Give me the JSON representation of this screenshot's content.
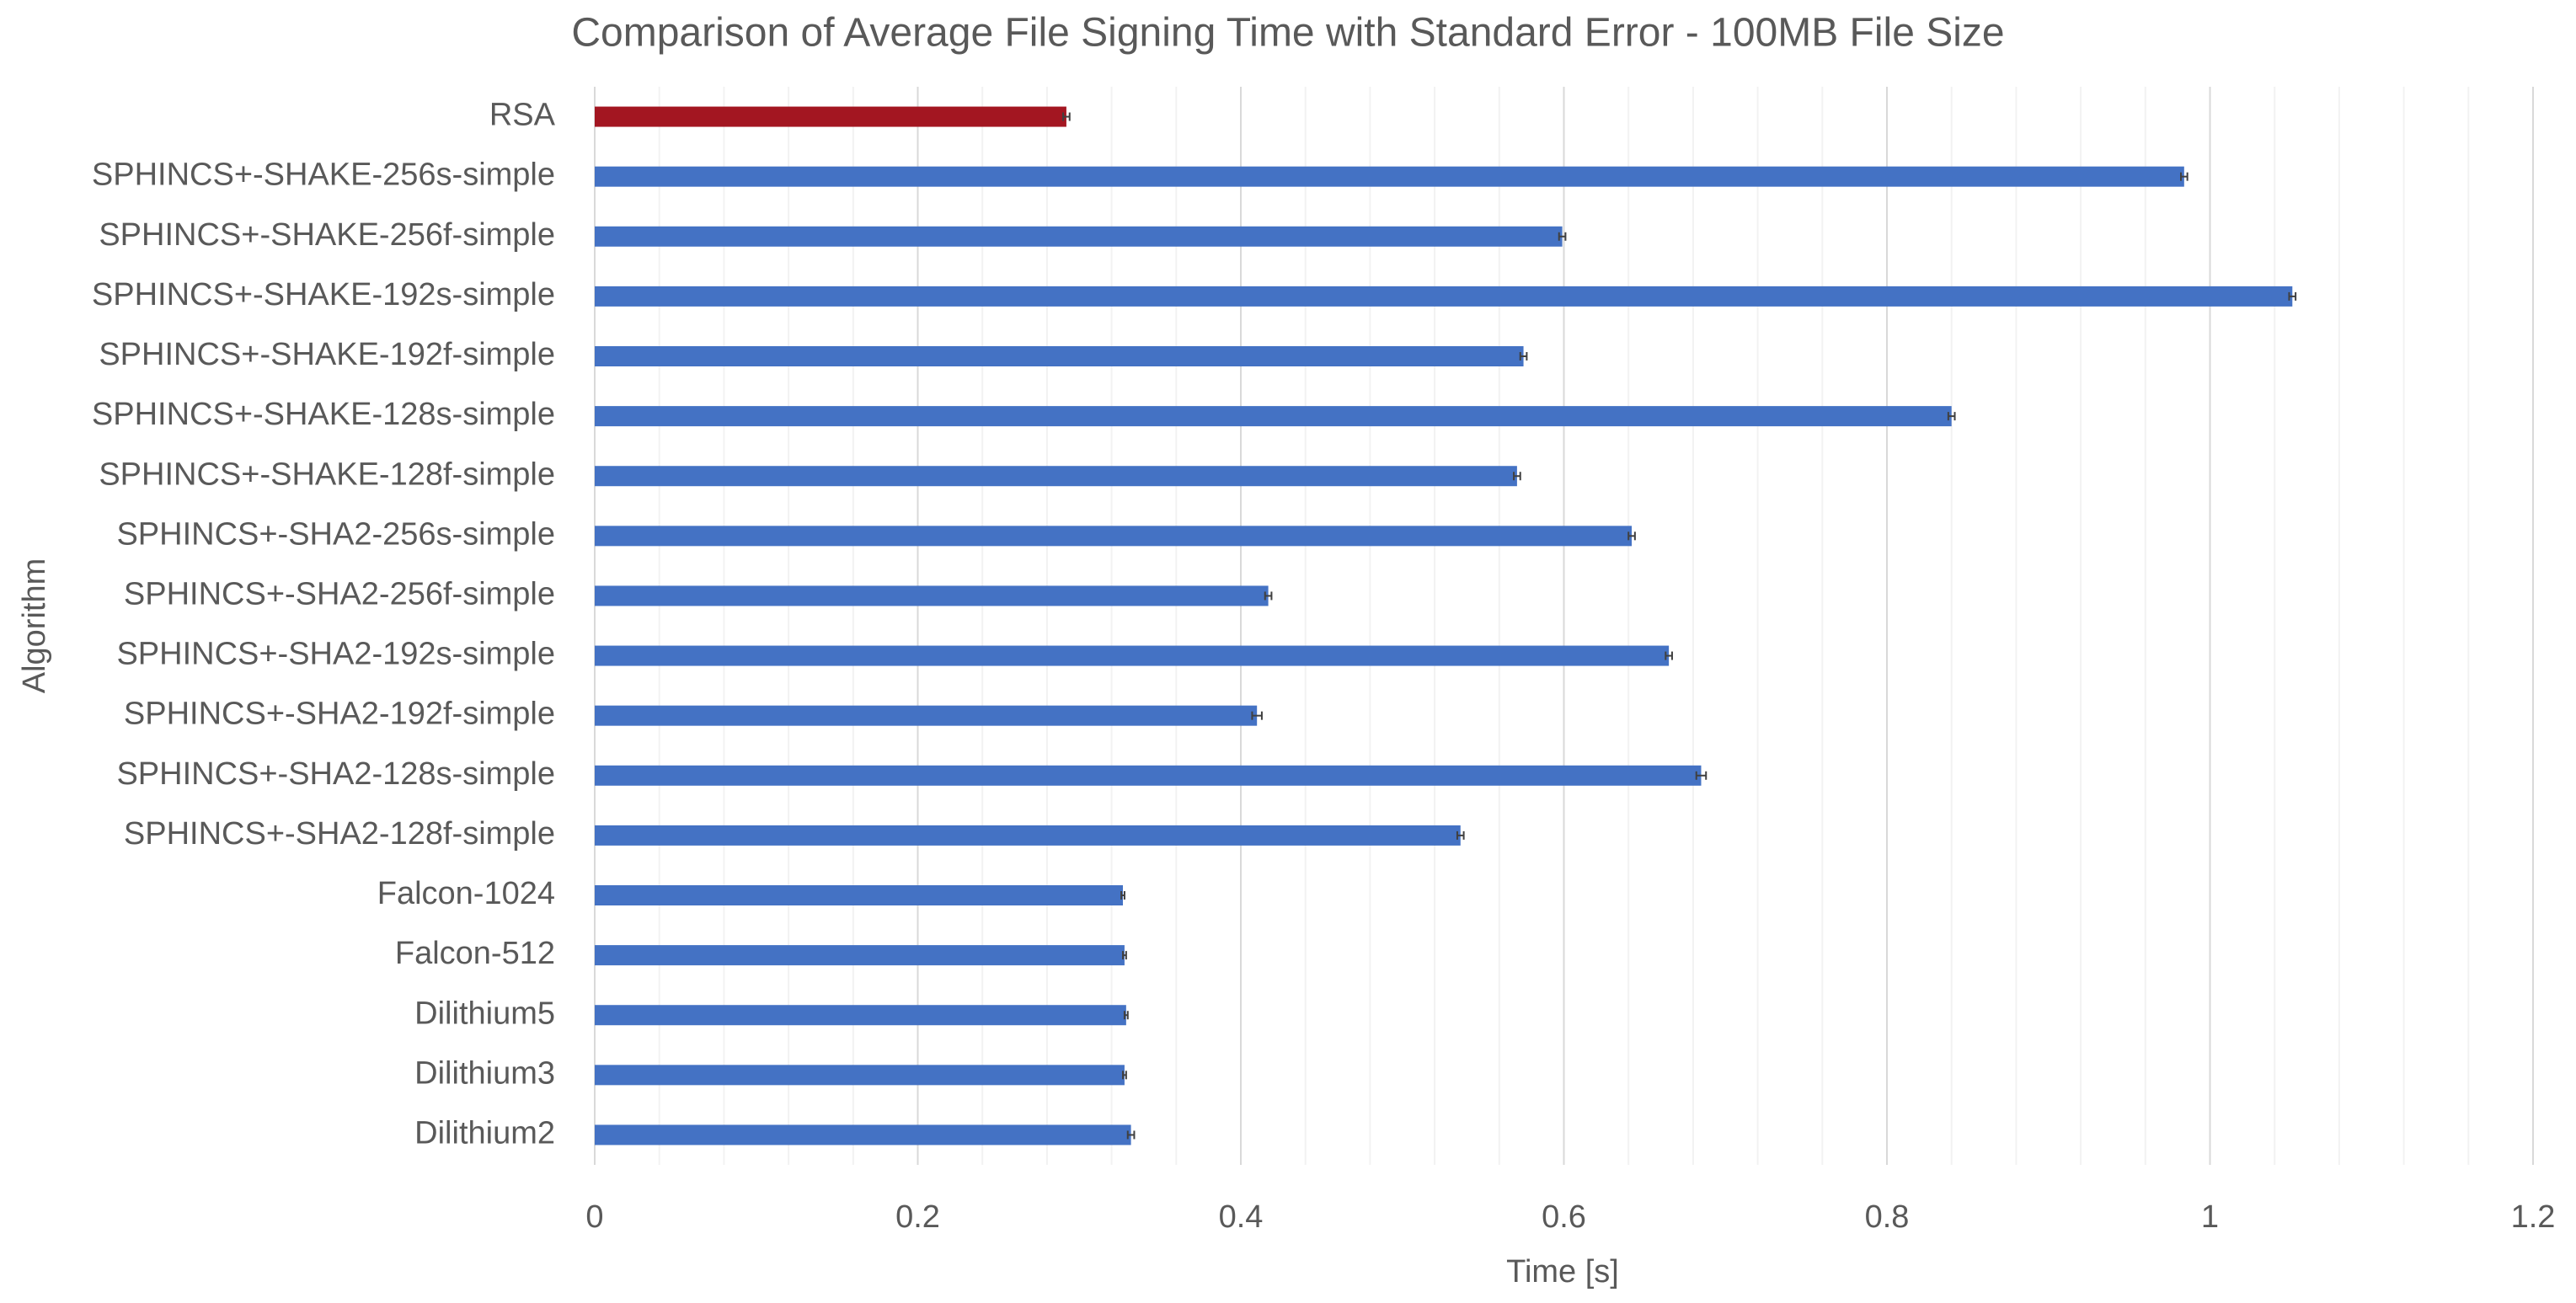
{
  "chart_data": {
    "type": "bar",
    "orientation": "horizontal",
    "title": "Comparison of Average File Signing Time with Standard Error - 100MB File Size",
    "x_label": "Time [s]",
    "y_label": "Algorithm",
    "categories": [
      "RSA",
      "SPHINCS+-SHAKE-256s-simple",
      "SPHINCS+-SHAKE-256f-simple",
      "SPHINCS+-SHAKE-192s-simple",
      "SPHINCS+-SHAKE-192f-simple",
      "SPHINCS+-SHAKE-128s-simple",
      "SPHINCS+-SHAKE-128f-simple",
      "SPHINCS+-SHA2-256s-simple",
      "SPHINCS+-SHA2-256f-simple",
      "SPHINCS+-SHA2-192s-simple",
      "SPHINCS+-SHA2-192f-simple",
      "SPHINCS+-SHA2-128s-simple",
      "SPHINCS+-SHA2-128f-simple",
      "Falcon-1024",
      "Falcon-512",
      "Dilithium5",
      "Dilithium3",
      "Dilithium2"
    ],
    "values": [
      0.292,
      0.984,
      0.599,
      1.051,
      0.575,
      0.84,
      0.571,
      0.642,
      0.417,
      0.665,
      0.41,
      0.685,
      0.536,
      0.327,
      0.328,
      0.329,
      0.328,
      0.332
    ],
    "errors": [
      0.002,
      0.002,
      0.002,
      0.002,
      0.002,
      0.002,
      0.002,
      0.002,
      0.002,
      0.002,
      0.003,
      0.003,
      0.002,
      0.001,
      0.001,
      0.001,
      0.001,
      0.002
    ],
    "colors": [
      "#a31621",
      "#4472c4",
      "#4472c4",
      "#4472c4",
      "#4472c4",
      "#4472c4",
      "#4472c4",
      "#4472c4",
      "#4472c4",
      "#4472c4",
      "#4472c4",
      "#4472c4",
      "#4472c4",
      "#4472c4",
      "#4472c4",
      "#4472c4",
      "#4472c4",
      "#4472c4"
    ],
    "xlim": [
      0,
      1.2
    ],
    "xticks": [
      0,
      0.2,
      0.4,
      0.6,
      0.8,
      1,
      1.2
    ],
    "grid": true
  }
}
